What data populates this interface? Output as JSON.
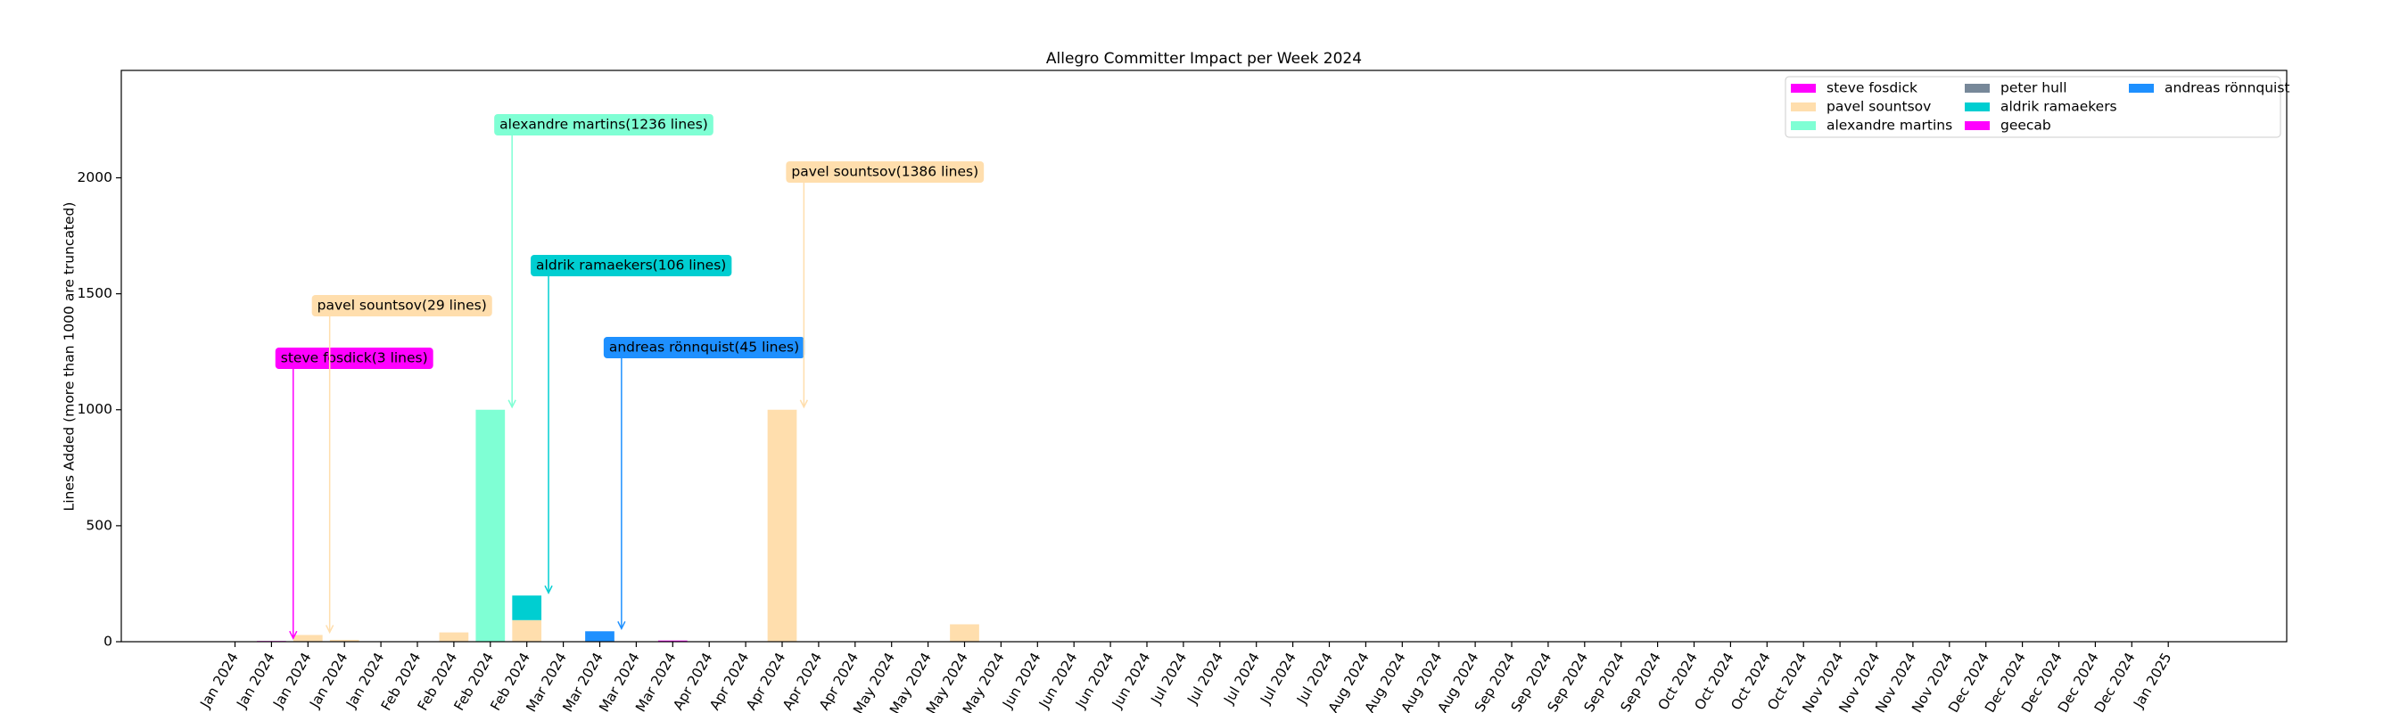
{
  "chart_data": {
    "type": "bar",
    "stacked": true,
    "title": "Allegro Committer Impact per Week 2024",
    "ylabel": "Lines Added (more than 1000 are truncated)",
    "categories": [
      "Jan 2024",
      "Jan 2024",
      "Jan 2024",
      "Jan 2024",
      "Jan 2024",
      "Feb 2024",
      "Feb 2024",
      "Feb 2024",
      "Feb 2024",
      "Mar 2024",
      "Mar 2024",
      "Mar 2024",
      "Mar 2024",
      "Apr 2024",
      "Apr 2024",
      "Apr 2024",
      "Apr 2024",
      "Apr 2024",
      "May 2024",
      "May 2024",
      "May 2024",
      "May 2024",
      "Jun 2024",
      "Jun 2024",
      "Jun 2024",
      "Jun 2024",
      "Jul 2024",
      "Jul 2024",
      "Jul 2024",
      "Jul 2024",
      "Jul 2024",
      "Aug 2024",
      "Aug 2024",
      "Aug 2024",
      "Aug 2024",
      "Sep 2024",
      "Sep 2024",
      "Sep 2024",
      "Sep 2024",
      "Sep 2024",
      "Oct 2024",
      "Oct 2024",
      "Oct 2024",
      "Oct 2024",
      "Nov 2024",
      "Nov 2024",
      "Nov 2024",
      "Nov 2024",
      "Dec 2024",
      "Dec 2024",
      "Dec 2024",
      "Dec 2024",
      "Dec 2024",
      "Jan 2025"
    ],
    "series": [
      {
        "name": "steve fosdick",
        "color": "#ff00ff",
        "values": [
          0,
          3,
          0,
          0,
          0,
          0,
          0,
          0,
          0,
          0,
          0,
          0,
          0,
          0,
          0,
          0,
          0,
          0,
          0,
          0,
          0,
          0,
          0,
          0,
          0,
          0,
          0,
          0,
          0,
          0,
          0,
          0,
          0,
          0,
          0,
          0,
          0,
          0,
          0,
          0,
          0,
          0,
          0,
          0,
          0,
          0,
          0,
          0,
          0,
          0,
          0,
          0,
          0,
          0
        ]
      },
      {
        "name": "pavel sountsov",
        "color": "#ffdead",
        "values": [
          0,
          0,
          29,
          8,
          0,
          0,
          40,
          0,
          93,
          0,
          0,
          0,
          0,
          0,
          0,
          1000,
          0,
          0,
          0,
          0,
          75,
          0,
          0,
          0,
          0,
          0,
          0,
          0,
          0,
          0,
          0,
          0,
          0,
          0,
          0,
          0,
          0,
          0,
          0,
          0,
          0,
          0,
          0,
          0,
          0,
          0,
          0,
          0,
          0,
          0,
          0,
          0,
          0,
          0
        ]
      },
      {
        "name": "alexandre martins",
        "color": "#7fffd4",
        "values": [
          0,
          0,
          0,
          0,
          0,
          0,
          0,
          1000,
          0,
          0,
          0,
          0,
          0,
          0,
          0,
          0,
          0,
          0,
          0,
          0,
          0,
          0,
          0,
          0,
          0,
          0,
          0,
          0,
          0,
          0,
          0,
          0,
          0,
          0,
          0,
          0,
          0,
          0,
          0,
          0,
          0,
          0,
          0,
          0,
          0,
          0,
          0,
          0,
          0,
          0,
          0,
          0,
          0,
          0
        ]
      },
      {
        "name": "peter hull",
        "color": "#778899",
        "values": [
          0,
          0,
          0,
          0,
          0,
          0,
          0,
          0,
          0,
          0,
          0,
          0,
          0,
          0,
          0,
          0,
          0,
          0,
          0,
          0,
          0,
          0,
          0,
          0,
          0,
          0,
          0,
          0,
          0,
          0,
          0,
          0,
          0,
          0,
          0,
          0,
          0,
          0,
          0,
          0,
          0,
          0,
          0,
          0,
          0,
          0,
          0,
          0,
          0,
          0,
          0,
          0,
          0,
          0
        ]
      },
      {
        "name": "aldrik ramaekers",
        "color": "#00ced1",
        "values": [
          0,
          0,
          0,
          0,
          0,
          0,
          0,
          0,
          106,
          0,
          0,
          0,
          0,
          0,
          0,
          0,
          0,
          0,
          0,
          0,
          0,
          0,
          0,
          0,
          0,
          0,
          0,
          0,
          0,
          0,
          0,
          0,
          0,
          0,
          0,
          0,
          0,
          0,
          0,
          0,
          0,
          0,
          0,
          0,
          0,
          0,
          0,
          0,
          0,
          0,
          0,
          0,
          0,
          0
        ]
      },
      {
        "name": "geecab",
        "color": "#ff00ff",
        "values": [
          0,
          0,
          0,
          0,
          0,
          0,
          0,
          0,
          0,
          0,
          0,
          0,
          5,
          0,
          0,
          0,
          0,
          0,
          0,
          0,
          0,
          0,
          0,
          0,
          0,
          0,
          0,
          0,
          0,
          0,
          0,
          0,
          0,
          0,
          0,
          0,
          0,
          0,
          0,
          0,
          0,
          0,
          0,
          0,
          0,
          0,
          0,
          0,
          0,
          0,
          0,
          0,
          0,
          0
        ]
      },
      {
        "name": "andreas rönnquist",
        "color": "#1e90ff",
        "values": [
          0,
          0,
          0,
          0,
          0,
          0,
          0,
          0,
          0,
          0,
          45,
          0,
          0,
          0,
          0,
          0,
          0,
          0,
          0,
          0,
          0,
          0,
          0,
          0,
          0,
          0,
          0,
          0,
          0,
          0,
          0,
          0,
          0,
          0,
          0,
          0,
          0,
          0,
          0,
          0,
          0,
          0,
          0,
          0,
          0,
          0,
          0,
          0,
          0,
          0,
          0,
          0,
          0,
          0
        ]
      }
    ],
    "annotations": [
      "steve fosdick(3 lines)",
      "pavel sountsov(29 lines)",
      "alexandre martins(1236 lines)",
      "aldrik ramaekers(106 lines)",
      "andreas rönnquist(45 lines)",
      "pavel sountsov(1386 lines)"
    ],
    "ylim": [
      0,
      2463
    ],
    "yticks": [
      0,
      500,
      1000,
      1500,
      2000
    ],
    "legend": "upper right",
    "grid": false
  }
}
